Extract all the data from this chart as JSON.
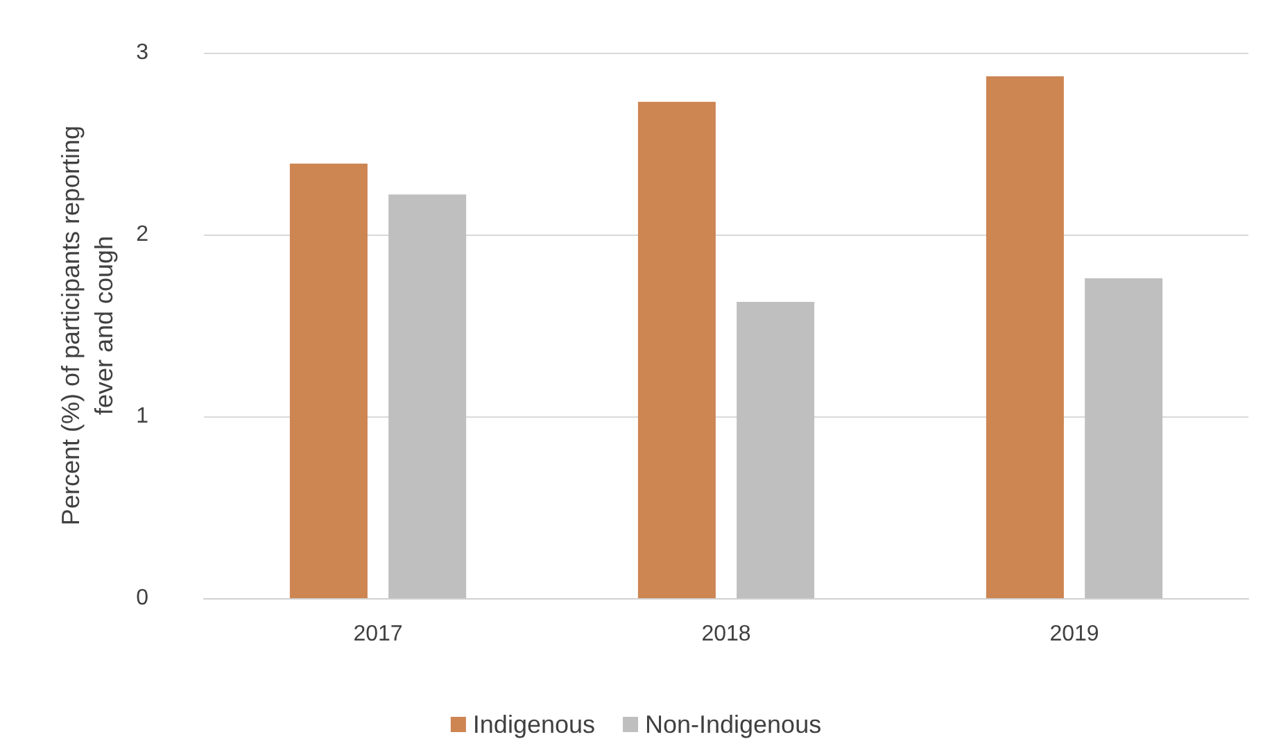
{
  "chart_data": {
    "type": "bar",
    "ylabel": "Percent (%) of participants reporting\nfever and cough",
    "categories": [
      "2017",
      "2018",
      "2019"
    ],
    "series": [
      {
        "name": "Indigenous",
        "color": "#cd8552",
        "values": [
          2.39,
          2.73,
          2.87
        ]
      },
      {
        "name": "Non-Indigenous",
        "color": "#bfbfbf",
        "values": [
          2.22,
          1.63,
          1.76
        ]
      }
    ],
    "ylim": [
      0,
      3
    ],
    "yticks": [
      0,
      1,
      2,
      3
    ],
    "grid": "y",
    "legend": "bottom"
  }
}
